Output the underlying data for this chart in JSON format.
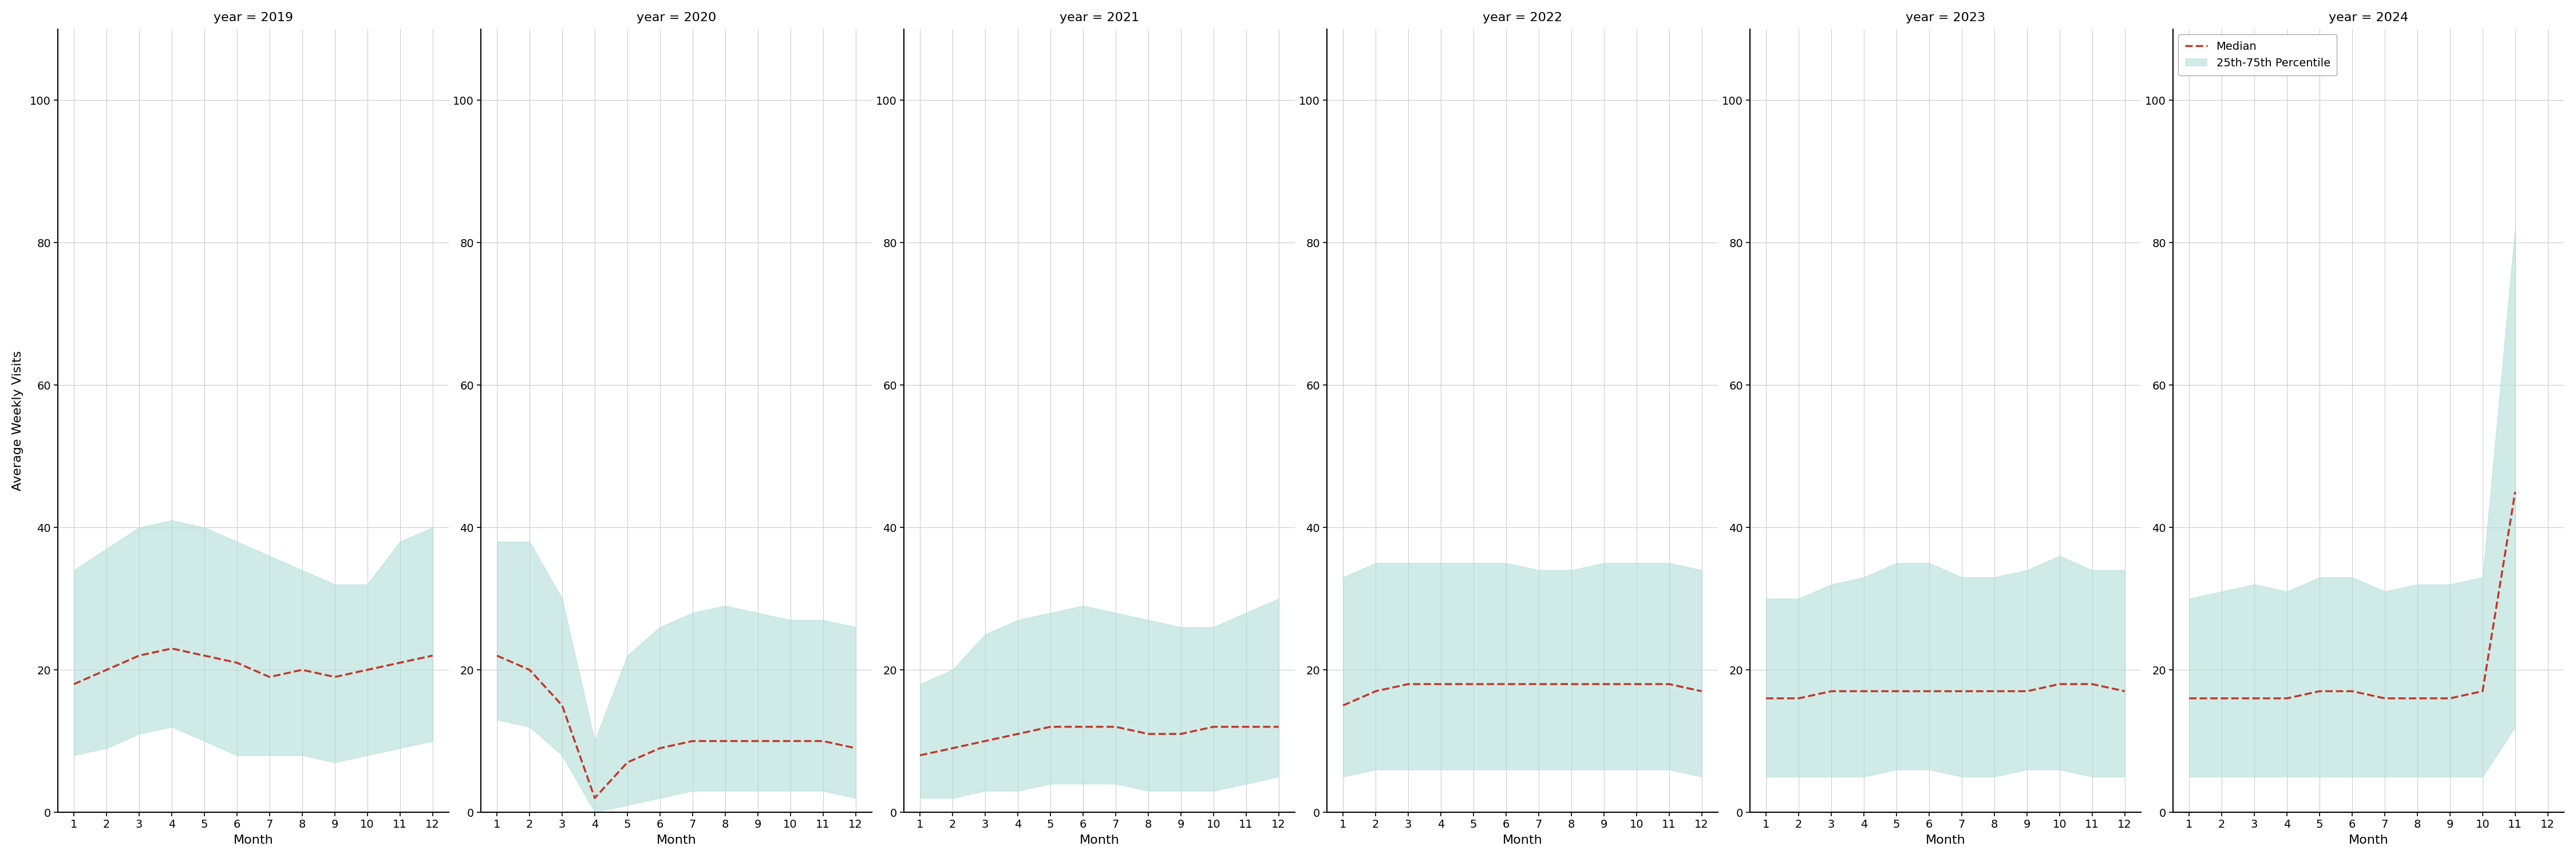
{
  "years": [
    2019,
    2020,
    2021,
    2022,
    2023,
    2024
  ],
  "months": [
    1,
    2,
    3,
    4,
    5,
    6,
    7,
    8,
    9,
    10,
    11,
    12
  ],
  "median": {
    "2019": [
      18,
      20,
      22,
      23,
      22,
      21,
      19,
      20,
      19,
      20,
      21,
      22
    ],
    "2020": [
      22,
      20,
      15,
      2,
      7,
      9,
      10,
      10,
      10,
      10,
      10,
      9
    ],
    "2021": [
      8,
      9,
      10,
      11,
      12,
      12,
      12,
      11,
      11,
      12,
      12,
      12
    ],
    "2022": [
      15,
      17,
      18,
      18,
      18,
      18,
      18,
      18,
      18,
      18,
      18,
      17
    ],
    "2023": [
      16,
      16,
      17,
      17,
      17,
      17,
      17,
      17,
      17,
      18,
      18,
      17
    ],
    "2024": [
      16,
      16,
      16,
      16,
      17,
      17,
      16,
      16,
      16,
      17,
      45,
      null
    ]
  },
  "q25": {
    "2019": [
      8,
      9,
      11,
      12,
      10,
      8,
      8,
      8,
      7,
      8,
      9,
      10
    ],
    "2020": [
      13,
      12,
      8,
      0,
      1,
      2,
      3,
      3,
      3,
      3,
      3,
      2
    ],
    "2021": [
      2,
      2,
      3,
      3,
      4,
      4,
      4,
      3,
      3,
      3,
      4,
      5
    ],
    "2022": [
      5,
      6,
      6,
      6,
      6,
      6,
      6,
      6,
      6,
      6,
      6,
      5
    ],
    "2023": [
      5,
      5,
      5,
      5,
      6,
      6,
      5,
      5,
      6,
      6,
      5,
      5
    ],
    "2024": [
      5,
      5,
      5,
      5,
      5,
      5,
      5,
      5,
      5,
      5,
      12,
      null
    ]
  },
  "q75": {
    "2019": [
      34,
      37,
      40,
      41,
      40,
      38,
      36,
      34,
      32,
      32,
      38,
      40
    ],
    "2020": [
      38,
      38,
      30,
      10,
      22,
      26,
      28,
      29,
      28,
      27,
      27,
      26
    ],
    "2021": [
      18,
      20,
      25,
      27,
      28,
      29,
      28,
      27,
      26,
      26,
      28,
      30
    ],
    "2022": [
      33,
      35,
      35,
      35,
      35,
      35,
      34,
      34,
      35,
      35,
      35,
      34
    ],
    "2023": [
      30,
      30,
      32,
      33,
      35,
      35,
      33,
      33,
      34,
      36,
      34,
      34
    ],
    "2024": [
      30,
      31,
      32,
      31,
      33,
      33,
      31,
      32,
      32,
      33,
      82,
      null
    ]
  },
  "ylim": [
    0,
    110
  ],
  "yticks": [
    0,
    20,
    40,
    60,
    80,
    100
  ],
  "xticks": [
    1,
    2,
    3,
    4,
    5,
    6,
    7,
    8,
    9,
    10,
    11,
    12
  ],
  "ylabel": "Average Weekly Visits",
  "xlabel": "Month",
  "fill_color": "#b2dfd8",
  "fill_alpha": 0.6,
  "line_color": "#c0392b",
  "line_style": "--",
  "line_width": 2.5,
  "grid_color": "#cccccc",
  "background_color": "#ffffff",
  "title_prefix": "year = ",
  "legend_labels": [
    "Median",
    "25th-75th Percentile"
  ],
  "fig_width": 45,
  "fig_height": 15
}
